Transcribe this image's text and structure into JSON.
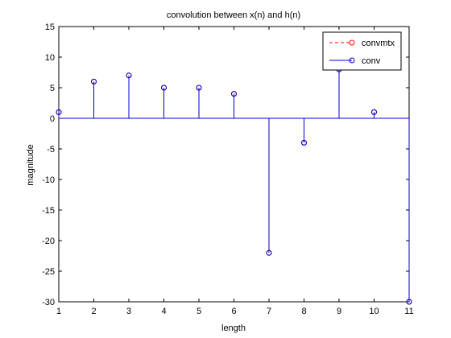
{
  "chart_data": {
    "type": "stem",
    "title": "convolution between x(n) and h(n)",
    "xlabel": "length",
    "ylabel": "magnitude",
    "xlim": [
      1,
      11
    ],
    "ylim": [
      -30,
      15
    ],
    "xticks": [
      1,
      2,
      3,
      4,
      5,
      6,
      7,
      8,
      9,
      10,
      11
    ],
    "yticks": [
      -30,
      -25,
      -20,
      -15,
      -10,
      -5,
      0,
      5,
      10,
      15
    ],
    "grid": false,
    "legend_position": "top-right",
    "series": [
      {
        "name": "convmtx",
        "color": "#ff0000",
        "line_style": "dashed",
        "marker": "circle",
        "x": [
          1,
          2,
          3,
          4,
          5,
          6,
          7,
          8,
          9,
          10,
          11
        ],
        "values": [
          1,
          6,
          7,
          5,
          5,
          4,
          -22,
          -4,
          8,
          1,
          -30
        ]
      },
      {
        "name": "conv",
        "color": "#0000cc",
        "line_style": "solid",
        "marker": "circle",
        "x": [
          1,
          2,
          3,
          4,
          5,
          6,
          7,
          8,
          9,
          10,
          11
        ],
        "values": [
          1,
          6,
          7,
          5,
          5,
          4,
          -22,
          -4,
          8,
          1,
          -30
        ]
      }
    ]
  }
}
